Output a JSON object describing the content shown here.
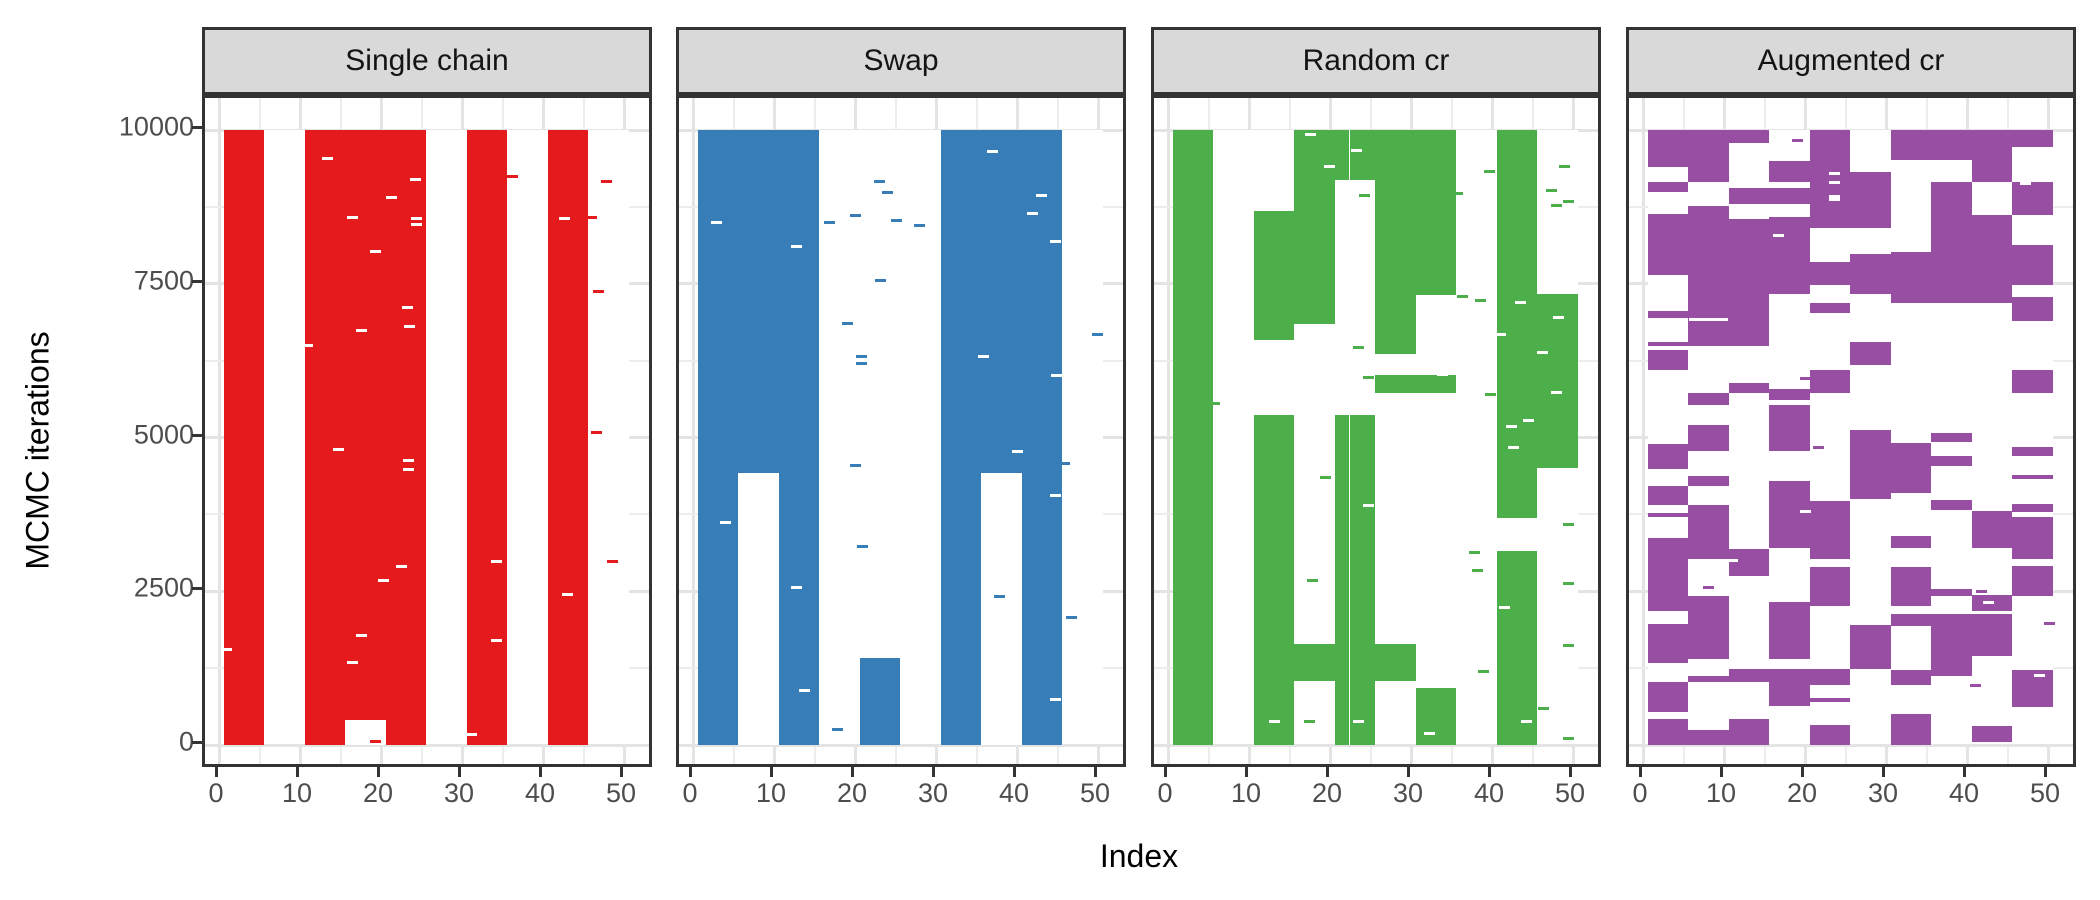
{
  "chart_data": {
    "type": "heatmap",
    "title": "",
    "xlabel": "Index",
    "ylabel": "MCMC iterations",
    "x_ticks": [
      0,
      10,
      20,
      30,
      40,
      50
    ],
    "y_ticks": [
      0,
      2500,
      5000,
      7500,
      10000
    ],
    "xlim": [
      -1.7,
      53.8
    ],
    "ylim": [
      -520,
      10520
    ],
    "grid": "major-minor, light gray, visible only in panel margins outside tile area",
    "legend_position": "none",
    "colors": {
      "strip_bg": "#D9D9D9",
      "strip_border": "#333333",
      "panel_border": "#333333",
      "grid": "#E8E8E8",
      "axis_text": "#4D4D4D",
      "axis_title": "#000000",
      "tile_bg": "#FFFFFF"
    },
    "panels": [
      {
        "label": "Single chain",
        "color": "#E41A1C",
        "blocks": [
          [
            0.6,
            5.6,
            0,
            10000
          ],
          [
            10.6,
            25.6,
            0,
            10000
          ],
          [
            30.6,
            35.6,
            0,
            10000
          ],
          [
            40.6,
            45.6,
            0,
            10000
          ]
        ],
        "holes": [
          [
            15.6,
            20.6,
            0,
            400
          ]
        ],
        "white_dashes": [
          [
            13.4,
            9540
          ],
          [
            24.3,
            9190
          ],
          [
            21.3,
            8900
          ],
          [
            16.5,
            8580
          ],
          [
            24.4,
            8560
          ],
          [
            24.4,
            8470
          ],
          [
            19.3,
            8020
          ],
          [
            23.3,
            7120
          ],
          [
            23.5,
            6810
          ],
          [
            17.6,
            6740
          ],
          [
            10.9,
            6490
          ],
          [
            14.7,
            4800
          ],
          [
            23.4,
            4620
          ],
          [
            23.4,
            4480
          ],
          [
            22.5,
            2900
          ],
          [
            20.3,
            2670
          ],
          [
            17.6,
            1780
          ],
          [
            16.5,
            1340
          ],
          [
            34.2,
            2990
          ],
          [
            34.2,
            1700
          ],
          [
            31.2,
            170
          ],
          [
            42.6,
            8560
          ],
          [
            43.0,
            2450
          ],
          [
            0.9,
            1550
          ]
        ],
        "color_dashes": [
          [
            36.2,
            9250
          ],
          [
            47.8,
            9160
          ],
          [
            46.0,
            8580
          ],
          [
            46.8,
            7370
          ],
          [
            46.6,
            5080
          ],
          [
            48.6,
            2990
          ],
          [
            19.3,
            60
          ]
        ]
      },
      {
        "label": "Swap",
        "color": "#377EB8",
        "blocks": [
          [
            0.6,
            15.6,
            0,
            10000
          ],
          [
            30.6,
            45.6,
            0,
            10000
          ],
          [
            20.6,
            25.6,
            0,
            1415
          ]
        ],
        "holes": [
          [
            5.6,
            10.6,
            0,
            4430
          ],
          [
            35.6,
            40.6,
            0,
            4430
          ]
        ],
        "white_dashes": [
          [
            2.9,
            8490
          ],
          [
            12.8,
            8100
          ],
          [
            4.0,
            3610
          ],
          [
            12.8,
            2560
          ],
          [
            13.8,
            890
          ],
          [
            37.0,
            9650
          ],
          [
            43.0,
            8940
          ],
          [
            41.9,
            8640
          ],
          [
            44.8,
            8190
          ],
          [
            35.9,
            6310
          ],
          [
            44.9,
            6010
          ],
          [
            40.0,
            4780
          ],
          [
            44.8,
            4050
          ],
          [
            44.8,
            740
          ]
        ],
        "color_dashes": [
          [
            23.0,
            9160
          ],
          [
            24.0,
            8980
          ],
          [
            20.1,
            8610
          ],
          [
            16.9,
            8490
          ],
          [
            25.1,
            8530
          ],
          [
            28.0,
            8450
          ],
          [
            23.1,
            7560
          ],
          [
            19.1,
            6860
          ],
          [
            20.8,
            6310
          ],
          [
            20.8,
            6200
          ],
          [
            20.0,
            4545
          ],
          [
            20.9,
            3220
          ],
          [
            17.8,
            250
          ],
          [
            37.8,
            2410
          ],
          [
            49.9,
            6670
          ],
          [
            45.9,
            4580
          ],
          [
            46.7,
            2080
          ]
        ]
      },
      {
        "label": "Random cr",
        "color": "#4DAF4A",
        "blocks": [
          [
            0.6,
            5.6,
            0,
            10000
          ],
          [
            10.6,
            15.6,
            6590,
            8680
          ],
          [
            10.6,
            15.6,
            0,
            5370
          ],
          [
            15.6,
            20.6,
            6840,
            10000
          ],
          [
            15.6,
            20.6,
            1040,
            1650
          ],
          [
            20.6,
            25.6,
            9180,
            10000
          ],
          [
            20.6,
            25.6,
            0,
            5370
          ],
          [
            25.6,
            30.6,
            6350,
            10000
          ],
          [
            25.6,
            35.6,
            5730,
            6010
          ],
          [
            25.6,
            30.6,
            1040,
            1650
          ],
          [
            30.6,
            35.6,
            7320,
            10000
          ],
          [
            30.6,
            35.6,
            0,
            930
          ],
          [
            40.6,
            45.6,
            3690,
            10000
          ],
          [
            40.6,
            45.6,
            0,
            3150
          ],
          [
            45.6,
            50.6,
            4510,
            7340
          ]
        ],
        "holes": [
          [
            22.33,
            22.47,
            0,
            10000
          ]
        ],
        "white_dashes": [
          [
            17.6,
            9920
          ],
          [
            19.9,
            9400
          ],
          [
            23.3,
            9660
          ],
          [
            24.8,
            3900
          ],
          [
            33.9,
            6030
          ],
          [
            43.5,
            7190
          ],
          [
            41.0,
            6670
          ],
          [
            46.2,
            6390
          ],
          [
            48.2,
            6950
          ],
          [
            48.0,
            5730
          ],
          [
            44.5,
            5270
          ],
          [
            42.4,
            5180
          ],
          [
            42.6,
            4830
          ],
          [
            41.6,
            2230
          ],
          [
            44.3,
            390
          ],
          [
            32.3,
            180
          ],
          [
            13.2,
            390
          ],
          [
            23.5,
            390
          ]
        ],
        "color_dashes": [
          [
            5.8,
            5560
          ],
          [
            19.5,
            4350
          ],
          [
            23.5,
            6460
          ],
          [
            24.7,
            5980
          ],
          [
            24.3,
            8930
          ],
          [
            35.8,
            8970
          ],
          [
            39.7,
            9330
          ],
          [
            36.3,
            7290
          ],
          [
            38.6,
            7230
          ],
          [
            39.8,
            5700
          ],
          [
            37.9,
            3130
          ],
          [
            38.2,
            2840
          ],
          [
            39.0,
            1200
          ],
          [
            46.4,
            600
          ],
          [
            49.0,
            9410
          ],
          [
            47.4,
            9020
          ],
          [
            48.0,
            8780
          ],
          [
            49.4,
            8840
          ],
          [
            49.4,
            3590
          ],
          [
            49.4,
            2630
          ],
          [
            49.4,
            1625
          ],
          [
            49.4,
            100
          ],
          [
            17.5,
            390
          ],
          [
            34.9,
            60
          ],
          [
            17.9,
            2680
          ]
        ]
      },
      {
        "label": "Augmented cr",
        "color": "#984EA3",
        "blocks": [
          [
            0.6,
            5.6,
            9400,
            10000
          ],
          [
            0.6,
            5.6,
            8990,
            9160
          ],
          [
            0.6,
            5.6,
            7640,
            8640
          ],
          [
            0.6,
            5.6,
            6940,
            7060
          ],
          [
            0.6,
            5.6,
            6480,
            6560
          ],
          [
            0.6,
            5.6,
            6100,
            6430
          ],
          [
            0.6,
            5.6,
            4480,
            4890
          ],
          [
            0.6,
            5.6,
            3910,
            4210
          ],
          [
            0.6,
            5.6,
            3710,
            3780
          ],
          [
            0.6,
            5.6,
            2180,
            3360
          ],
          [
            0.6,
            5.6,
            1330,
            1970
          ],
          [
            0.6,
            5.6,
            535,
            1020
          ],
          [
            0.6,
            5.6,
            0,
            430
          ],
          [
            5.6,
            10.6,
            9150,
            10000
          ],
          [
            5.6,
            10.6,
            6480,
            8760
          ],
          [
            5.6,
            10.6,
            5530,
            5720
          ],
          [
            5.6,
            10.6,
            4780,
            5210
          ],
          [
            5.6,
            10.6,
            4210,
            4370
          ],
          [
            5.6,
            10.6,
            3020,
            3910
          ],
          [
            5.6,
            10.6,
            1400,
            2430
          ],
          [
            5.6,
            10.6,
            1020,
            1130
          ],
          [
            5.6,
            10.6,
            0,
            240
          ],
          [
            10.6,
            15.6,
            9790,
            10000
          ],
          [
            10.6,
            15.6,
            8790,
            9060
          ],
          [
            10.6,
            15.6,
            6490,
            8560
          ],
          [
            10.6,
            15.6,
            5720,
            5880
          ],
          [
            10.6,
            15.6,
            2750,
            3180
          ],
          [
            10.6,
            15.6,
            1020,
            1240
          ],
          [
            10.6,
            15.6,
            0,
            430
          ],
          [
            15.6,
            20.6,
            9150,
            9500
          ],
          [
            15.6,
            20.6,
            8790,
            9060
          ],
          [
            15.6,
            20.6,
            7340,
            8590
          ],
          [
            15.6,
            20.6,
            5610,
            5790
          ],
          [
            15.6,
            20.6,
            4776,
            5530
          ],
          [
            15.6,
            20.6,
            3210,
            4300
          ],
          [
            15.6,
            20.6,
            1400,
            2320
          ],
          [
            15.6,
            20.6,
            640,
            1240
          ],
          [
            20.6,
            25.6,
            8400,
            10000
          ],
          [
            20.6,
            25.6,
            7480,
            7860
          ],
          [
            20.6,
            25.6,
            7020,
            7180
          ],
          [
            20.6,
            25.6,
            5720,
            6100
          ],
          [
            20.6,
            25.6,
            3030,
            3965
          ],
          [
            20.6,
            25.6,
            2265,
            2890
          ],
          [
            20.6,
            25.6,
            968,
            1240
          ],
          [
            20.6,
            25.6,
            700,
            765
          ],
          [
            20.6,
            25.6,
            0,
            330
          ],
          [
            25.6,
            30.6,
            8400,
            9320
          ],
          [
            25.6,
            30.6,
            7340,
            7990
          ],
          [
            25.6,
            30.6,
            6180,
            6560
          ],
          [
            25.6,
            30.6,
            4590,
            5130
          ],
          [
            25.6,
            30.6,
            4000,
            4590
          ],
          [
            25.6,
            30.6,
            1240,
            1945
          ],
          [
            30.6,
            35.6,
            9515,
            10000
          ],
          [
            30.6,
            35.6,
            7180,
            8020
          ],
          [
            30.6,
            35.6,
            4100,
            4915
          ],
          [
            30.6,
            35.6,
            3210,
            3405
          ],
          [
            30.6,
            35.6,
            2265,
            2890
          ],
          [
            30.6,
            35.6,
            1940,
            2130
          ],
          [
            30.6,
            35.6,
            980,
            1215
          ],
          [
            30.6,
            35.6,
            0,
            505
          ],
          [
            35.6,
            40.6,
            9515,
            10000
          ],
          [
            35.6,
            40.6,
            7180,
            9155
          ],
          [
            35.6,
            40.6,
            4920,
            5075
          ],
          [
            35.6,
            40.6,
            4530,
            4695
          ],
          [
            35.6,
            40.6,
            3815,
            3990
          ],
          [
            35.6,
            40.6,
            2425,
            2530
          ],
          [
            35.6,
            40.6,
            1130,
            2130
          ],
          [
            40.6,
            45.6,
            9155,
            10000
          ],
          [
            40.6,
            45.6,
            7180,
            8610
          ],
          [
            40.6,
            45.6,
            3210,
            3800
          ],
          [
            40.6,
            45.6,
            2175,
            2440
          ],
          [
            40.6,
            45.6,
            1440,
            2130
          ],
          [
            40.6,
            45.6,
            45,
            305
          ],
          [
            45.6,
            50.6,
            9720,
            10000
          ],
          [
            45.6,
            50.6,
            8610,
            9155
          ],
          [
            45.6,
            50.6,
            7480,
            8130
          ],
          [
            45.6,
            50.6,
            6900,
            7290
          ],
          [
            45.6,
            50.6,
            5720,
            6100
          ],
          [
            45.6,
            50.6,
            4705,
            4845
          ],
          [
            45.6,
            50.6,
            4320,
            4385
          ],
          [
            45.6,
            50.6,
            3785,
            3925
          ],
          [
            45.6,
            50.6,
            3030,
            3700
          ],
          [
            45.6,
            50.6,
            2425,
            2910
          ],
          [
            45.6,
            50.6,
            620,
            1215
          ]
        ],
        "holes": [
          [
            5.7,
            10.5,
            6890,
            6950
          ]
        ],
        "white_dashes": [
          [
            16.7,
            8290
          ],
          [
            23.6,
            9300
          ],
          [
            23.6,
            9150
          ],
          [
            23.6,
            8920
          ],
          [
            23.6,
            8870
          ],
          [
            47.2,
            9130
          ],
          [
            42.6,
            2310
          ],
          [
            48.9,
            1130
          ],
          [
            20.1,
            3790
          ],
          [
            11.0,
            3005
          ]
        ],
        "color_dashes": [
          [
            19.1,
            9830
          ],
          [
            20.0,
            5966
          ],
          [
            41.8,
            2490
          ],
          [
            41.0,
            970
          ],
          [
            50.2,
            1980
          ],
          [
            21.7,
            4840
          ],
          [
            8.1,
            2560
          ]
        ]
      }
    ]
  }
}
